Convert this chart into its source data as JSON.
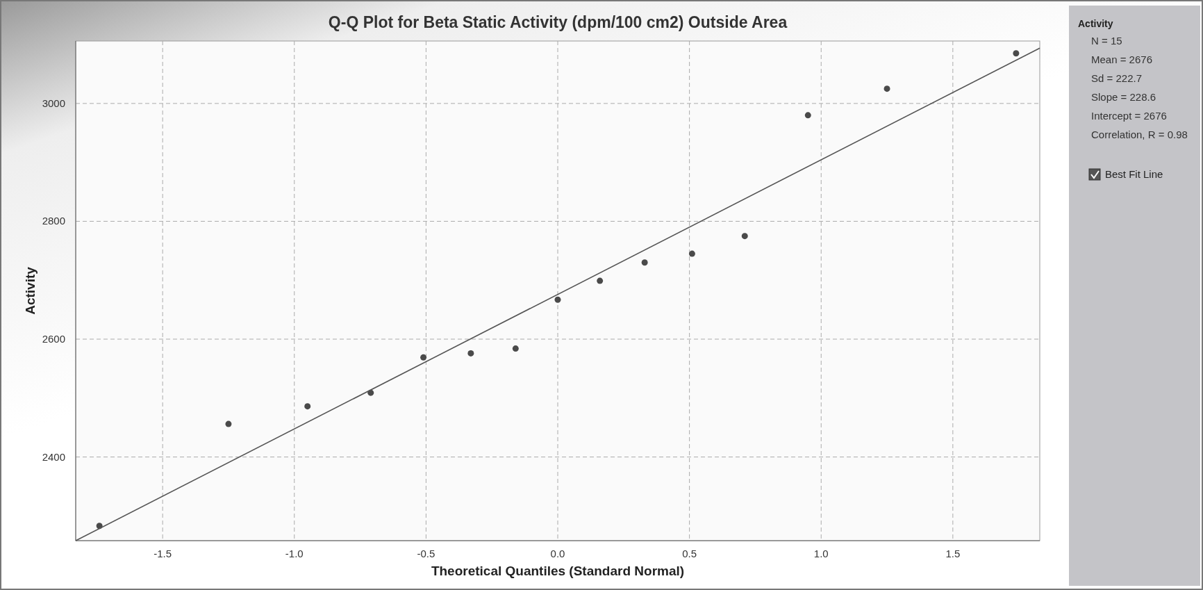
{
  "chart_data": {
    "type": "scatter",
    "title": "Q-Q Plot for Beta Static Activity (dpm/100 cm2) Outside Area",
    "xlabel": "Theoretical Quantiles (Standard Normal)",
    "ylabel": "Activity",
    "legend_title": "Activity",
    "annotations": [
      "N = 15",
      "Mean = 2676",
      "Sd = 222.7",
      "Slope = 228.6",
      "Intercept = 2676",
      "Correlation, R = 0.98"
    ],
    "series": [
      {
        "color": "#4a4a4a",
        "marker": "circle",
        "x": [
          -1.74,
          -1.25,
          -0.95,
          -0.71,
          -0.51,
          -0.33,
          -0.16,
          0,
          0.16,
          0.33,
          0.51,
          0.71,
          0.95,
          1.25,
          1.74
        ],
        "values": [
          2283,
          2456,
          2486,
          2509,
          2569,
          2576,
          2584,
          2667,
          2699,
          2730,
          2745,
          2775,
          2980,
          3025,
          3085
        ]
      },
      {
        "type": "line",
        "name": "Best Fit Line",
        "color": "#555555",
        "x": [
          -1.83,
          1.83
        ],
        "values": [
          2258,
          3094
        ]
      }
    ],
    "xlim": [
      -1.83,
      1.83
    ],
    "ylim": [
      2258,
      3106
    ],
    "xticks": [
      {
        "value": -1.5,
        "label": "-1.5"
      },
      {
        "value": -1,
        "label": "-1.0"
      },
      {
        "value": -0.5,
        "label": "-0.5"
      },
      {
        "value": 0,
        "label": "0.0"
      },
      {
        "value": 0.5,
        "label": "0.5"
      },
      {
        "value": 1,
        "label": "1.0"
      },
      {
        "value": 1.5,
        "label": "1.5"
      }
    ],
    "yticks": [
      2400,
      2600,
      2800,
      3000
    ],
    "grid": true,
    "legend": "right",
    "line_style": "solid"
  }
}
